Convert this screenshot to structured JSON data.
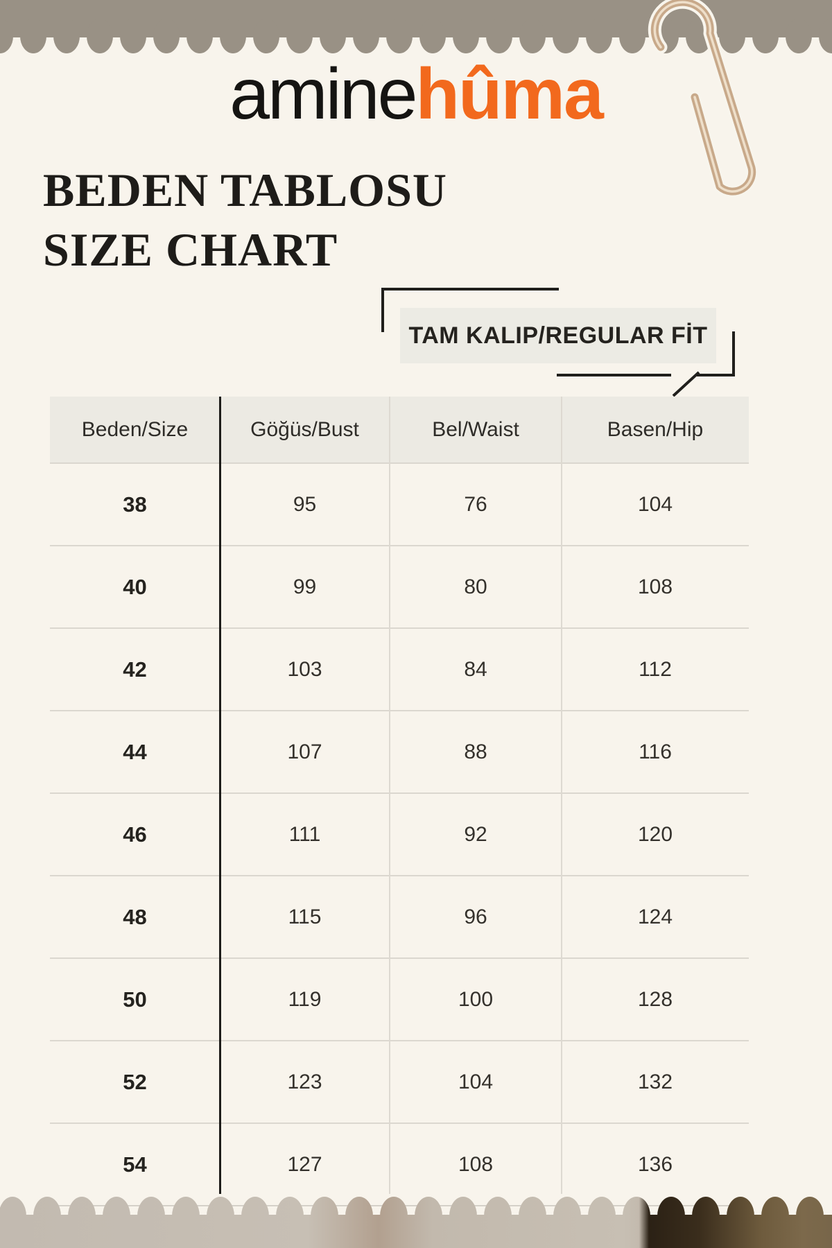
{
  "brand": {
    "name_regular": "amine",
    "name_bold": "hûma",
    "orange": "#f2691d"
  },
  "titles": {
    "turkish": "BEDEN TABLOSU",
    "english": "SIZE CHART"
  },
  "fit_badge": {
    "label": "TAM KALIP/REGULAR FİT"
  },
  "size_table": {
    "columns": [
      "Beden/Size",
      "Göğüs/Bust",
      "Bel/Waist",
      "Basen/Hip"
    ],
    "rows": [
      [
        "38",
        "95",
        "76",
        "104"
      ],
      [
        "40",
        "99",
        "80",
        "108"
      ],
      [
        "42",
        "103",
        "84",
        "112"
      ],
      [
        "44",
        "107",
        "88",
        "116"
      ],
      [
        "46",
        "111",
        "92",
        "120"
      ],
      [
        "48",
        "115",
        "96",
        "124"
      ],
      [
        "50",
        "119",
        "100",
        "128"
      ],
      [
        "52",
        "123",
        "104",
        "132"
      ],
      [
        "54",
        "127",
        "108",
        "136"
      ]
    ]
  },
  "chart_data": {
    "type": "table",
    "title": "BEDEN TABLOSU / SIZE CHART — TAM KALIP/REGULAR FİT",
    "columns": [
      "Beden/Size",
      "Göğüs/Bust",
      "Bel/Waist",
      "Basen/Hip"
    ],
    "rows": [
      [
        38,
        95,
        76,
        104
      ],
      [
        40,
        99,
        80,
        108
      ],
      [
        42,
        103,
        84,
        112
      ],
      [
        44,
        107,
        88,
        116
      ],
      [
        46,
        111,
        92,
        120
      ],
      [
        48,
        115,
        96,
        124
      ],
      [
        50,
        119,
        100,
        128
      ],
      [
        52,
        123,
        104,
        132
      ],
      [
        54,
        127,
        108,
        136
      ]
    ]
  },
  "colors": {
    "page_background": "#f8f4ec",
    "top_band_gray": "#999185",
    "header_background": "#eceae3",
    "text_dark": "#25231f",
    "line_black": "#1d1c19",
    "line_light": "#dbd7cf",
    "paperclip_tan": "#c8a98a"
  }
}
